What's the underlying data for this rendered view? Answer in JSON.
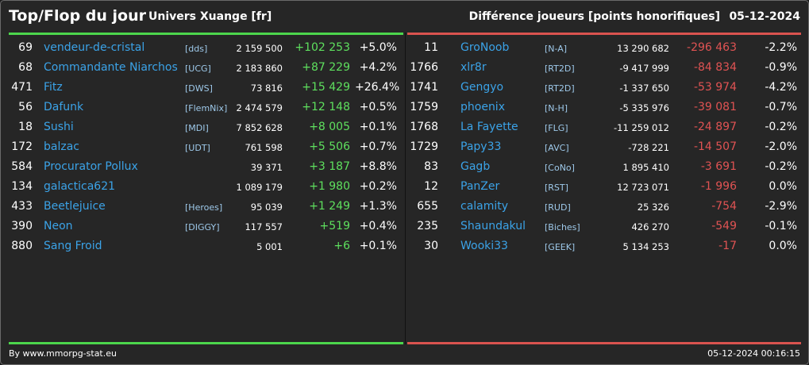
{
  "header": {
    "title": "Top/Flop du jour",
    "universe": "Univers Xuange [fr]",
    "metric": "Différence joueurs [points honorifiques]",
    "date": "05-12-2024"
  },
  "colors": {
    "top": "#4cd64c",
    "flop": "#d9534f",
    "link": "#3ba3e8"
  },
  "top": [
    {
      "rank": "69",
      "name": "vendeur-de-cristal",
      "tag": "[dds]",
      "score": "2 159 500",
      "diff": "+102 253",
      "pct": "+5.0%"
    },
    {
      "rank": "68",
      "name": "Commandante Niarchos",
      "tag": "[UCG]",
      "score": "2 183 860",
      "diff": "+87 229",
      "pct": "+4.2%"
    },
    {
      "rank": "471",
      "name": "Fitz",
      "tag": "[DWS]",
      "score": "73 816",
      "diff": "+15 429",
      "pct": "+26.4%"
    },
    {
      "rank": "56",
      "name": "Dafunk",
      "tag": "[FlemNix]",
      "score": "2 474 579",
      "diff": "+12 148",
      "pct": "+0.5%"
    },
    {
      "rank": "18",
      "name": "Sushi",
      "tag": "[MDI]",
      "score": "7 852 628",
      "diff": "+8 005",
      "pct": "+0.1%"
    },
    {
      "rank": "172",
      "name": "balzac",
      "tag": "[UDT]",
      "score": "761 598",
      "diff": "+5 506",
      "pct": "+0.7%"
    },
    {
      "rank": "584",
      "name": "Procurator Pollux",
      "tag": "",
      "score": "39 371",
      "diff": "+3 187",
      "pct": "+8.8%"
    },
    {
      "rank": "134",
      "name": "galactica621",
      "tag": "",
      "score": "1 089 179",
      "diff": "+1 980",
      "pct": "+0.2%"
    },
    {
      "rank": "433",
      "name": "Beetlejuice",
      "tag": "[Heroes]",
      "score": "95 039",
      "diff": "+1 249",
      "pct": "+1.3%"
    },
    {
      "rank": "390",
      "name": "Neon",
      "tag": "[DIGGY]",
      "score": "117 557",
      "diff": "+519",
      "pct": "+0.4%"
    },
    {
      "rank": "880",
      "name": "Sang Froid",
      "tag": "",
      "score": "5 001",
      "diff": "+6",
      "pct": "+0.1%"
    }
  ],
  "flop": [
    {
      "rank": "11",
      "name": "GroNoob",
      "tag": "[N-A]",
      "score": "13 290 682",
      "diff": "-296 463",
      "pct": "-2.2%"
    },
    {
      "rank": "1766",
      "name": "xlr8r",
      "tag": "[RT2D]",
      "score": "-9 417 999",
      "diff": "-84 834",
      "pct": "-0.9%"
    },
    {
      "rank": "1741",
      "name": "Gengyo",
      "tag": "[RT2D]",
      "score": "-1 337 650",
      "diff": "-53 974",
      "pct": "-4.2%"
    },
    {
      "rank": "1759",
      "name": "phoenix",
      "tag": "[N-H]",
      "score": "-5 335 976",
      "diff": "-39 081",
      "pct": "-0.7%"
    },
    {
      "rank": "1768",
      "name": "La Fayette",
      "tag": "[FLG]",
      "score": "-11 259 012",
      "diff": "-24 897",
      "pct": "-0.2%"
    },
    {
      "rank": "1729",
      "name": "Papy33",
      "tag": "[AVC]",
      "score": "-728 221",
      "diff": "-14 507",
      "pct": "-2.0%"
    },
    {
      "rank": "83",
      "name": "Gagb",
      "tag": "[CoNo]",
      "score": "1 895 410",
      "diff": "-3 691",
      "pct": "-0.2%"
    },
    {
      "rank": "12",
      "name": "PanZer",
      "tag": "[RST]",
      "score": "12 723 071",
      "diff": "-1 996",
      "pct": "0.0%"
    },
    {
      "rank": "655",
      "name": "calamity",
      "tag": "[RUD]",
      "score": "25 326",
      "diff": "-754",
      "pct": "-2.9%"
    },
    {
      "rank": "235",
      "name": "Shaundakul",
      "tag": "[Biches]",
      "score": "426 270",
      "diff": "-549",
      "pct": "-0.1%"
    },
    {
      "rank": "30",
      "name": "Wooki33",
      "tag": "[GEEK]",
      "score": "5 134 253",
      "diff": "-17",
      "pct": "0.0%"
    }
  ],
  "footer": {
    "credit": "By www.mmorpg-stat.eu",
    "timestamp": "05-12-2024 00:16:15"
  }
}
